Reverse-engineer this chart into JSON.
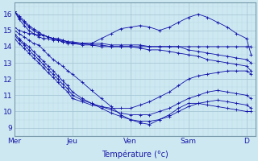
{
  "xlabel": "Température (°c)",
  "background_color": "#cde8f0",
  "grid_major_color": "#a8c8d8",
  "grid_minor_color": "#b8d8e8",
  "line_color": "#1010aa",
  "xlim": [
    0,
    4.15
  ],
  "ylim": [
    8.5,
    16.7
  ],
  "yticks": [
    9,
    10,
    11,
    12,
    13,
    14,
    15,
    16
  ],
  "x_day_labels": [
    "Mer",
    "Jeu",
    "Ven",
    "Sam",
    "D"
  ],
  "x_day_positions": [
    0,
    1,
    2,
    3,
    4
  ],
  "series": [
    {
      "x": [
        0.0,
        0.08,
        0.17,
        0.25,
        0.33,
        0.42,
        0.5,
        0.58,
        0.67,
        0.75,
        0.83,
        0.92,
        1.0,
        1.17,
        1.33,
        1.5,
        1.67,
        1.83,
        2.0,
        2.17,
        2.33,
        2.5,
        2.67,
        2.83,
        3.0,
        3.17,
        3.33,
        3.5,
        3.67,
        3.83,
        4.0,
        4.08
      ],
      "y": [
        16.2,
        15.8,
        15.5,
        15.2,
        15.0,
        14.8,
        14.7,
        14.6,
        14.5,
        14.4,
        14.3,
        14.2,
        14.2,
        14.1,
        14.1,
        14.0,
        14.0,
        14.0,
        14.0,
        14.0,
        14.0,
        14.0,
        14.0,
        14.0,
        14.0,
        14.0,
        14.0,
        14.0,
        14.0,
        14.0,
        14.0,
        14.0
      ]
    },
    {
      "x": [
        0.0,
        0.08,
        0.17,
        0.25,
        0.33,
        0.42,
        0.5,
        0.58,
        0.67,
        0.75,
        0.83,
        0.92,
        1.0,
        1.17,
        1.33,
        1.5,
        1.67,
        1.83,
        2.0,
        2.17,
        2.33,
        2.5,
        2.67,
        2.83,
        3.0,
        3.17,
        3.33,
        3.5,
        3.67,
        3.83,
        4.0,
        4.08
      ],
      "y": [
        16.2,
        15.7,
        15.3,
        15.0,
        14.8,
        14.6,
        14.5,
        14.5,
        14.4,
        14.4,
        14.3,
        14.3,
        14.2,
        14.2,
        14.2,
        14.2,
        14.1,
        14.1,
        14.1,
        14.1,
        14.0,
        14.0,
        14.0,
        14.0,
        13.8,
        13.7,
        13.6,
        13.5,
        13.4,
        13.3,
        13.2,
        13.0
      ]
    },
    {
      "x": [
        0.0,
        0.08,
        0.17,
        0.25,
        0.33,
        0.42,
        0.5,
        0.58,
        0.67,
        0.75,
        0.83,
        0.92,
        1.0,
        1.17,
        1.33,
        1.5,
        1.67,
        1.83,
        2.0,
        2.17,
        2.33,
        2.5,
        2.67,
        2.83,
        3.0,
        3.17,
        3.33,
        3.5,
        3.67,
        3.83,
        4.0,
        4.08
      ],
      "y": [
        15.2,
        15.0,
        14.9,
        14.8,
        14.8,
        14.7,
        14.7,
        14.6,
        14.5,
        14.5,
        14.4,
        14.3,
        14.3,
        14.2,
        14.1,
        14.1,
        14.0,
        14.0,
        14.0,
        13.9,
        13.8,
        13.8,
        13.7,
        13.6,
        13.5,
        13.4,
        13.2,
        13.1,
        13.0,
        12.9,
        12.8,
        12.5
      ]
    },
    {
      "x": [
        0.0,
        0.08,
        0.17,
        0.25,
        0.33,
        0.42,
        0.5,
        0.58,
        0.67,
        0.75,
        0.83,
        0.92,
        1.0,
        1.17,
        1.33,
        1.5,
        1.67,
        1.83,
        2.0,
        2.17,
        2.33,
        2.5,
        2.67,
        2.83,
        3.0,
        3.17,
        3.33,
        3.5,
        3.67,
        3.83,
        4.0,
        4.08
      ],
      "y": [
        15.0,
        14.8,
        14.6,
        14.4,
        14.2,
        14.1,
        13.8,
        13.5,
        13.2,
        13.0,
        12.8,
        12.5,
        12.3,
        11.8,
        11.3,
        10.8,
        10.3,
        9.8,
        9.5,
        9.3,
        9.2,
        9.5,
        9.8,
        10.2,
        10.5,
        10.5,
        10.4,
        10.3,
        10.2,
        10.1,
        10.0,
        10.0
      ]
    },
    {
      "x": [
        0.0,
        0.08,
        0.17,
        0.25,
        0.33,
        0.42,
        0.5,
        0.58,
        0.67,
        0.75,
        0.83,
        0.92,
        1.0,
        1.17,
        1.33,
        1.5,
        1.67,
        1.83,
        2.0,
        2.17,
        2.33,
        2.5,
        2.67,
        2.83,
        3.0,
        3.17,
        3.33,
        3.5,
        3.67,
        3.83,
        4.0,
        4.08
      ],
      "y": [
        14.8,
        14.5,
        14.2,
        14.0,
        13.7,
        13.4,
        13.1,
        12.8,
        12.5,
        12.2,
        11.9,
        11.6,
        11.2,
        10.8,
        10.5,
        10.2,
        9.9,
        9.7,
        9.5,
        9.4,
        9.4,
        9.5,
        9.7,
        10.0,
        10.3,
        10.5,
        10.6,
        10.7,
        10.6,
        10.5,
        10.4,
        10.2
      ]
    },
    {
      "x": [
        0.0,
        0.08,
        0.17,
        0.25,
        0.33,
        0.42,
        0.5,
        0.58,
        0.67,
        0.75,
        0.83,
        0.92,
        1.0,
        1.17,
        1.33,
        1.5,
        1.67,
        1.83,
        2.0,
        2.17,
        2.33,
        2.5,
        2.67,
        2.83,
        3.0,
        3.17,
        3.33,
        3.5,
        3.67,
        3.83,
        4.0,
        4.08
      ],
      "y": [
        14.7,
        14.4,
        14.1,
        13.8,
        13.5,
        13.2,
        12.9,
        12.6,
        12.3,
        12.0,
        11.7,
        11.4,
        11.0,
        10.7,
        10.5,
        10.3,
        10.1,
        9.9,
        9.8,
        9.8,
        9.8,
        10.0,
        10.2,
        10.5,
        10.8,
        11.0,
        11.2,
        11.3,
        11.2,
        11.1,
        11.0,
        10.8
      ]
    },
    {
      "x": [
        0.0,
        0.08,
        0.17,
        0.25,
        0.33,
        0.42,
        0.5,
        0.58,
        0.67,
        0.75,
        0.83,
        0.92,
        1.0,
        1.17,
        1.33,
        1.5,
        1.67,
        1.83,
        2.0,
        2.17,
        2.33,
        2.5,
        2.67,
        2.83,
        3.0,
        3.17,
        3.33,
        3.5,
        3.67,
        3.83,
        4.0,
        4.08
      ],
      "y": [
        14.5,
        14.2,
        13.9,
        13.6,
        13.3,
        13.0,
        12.7,
        12.4,
        12.1,
        11.8,
        11.5,
        11.2,
        10.8,
        10.6,
        10.4,
        10.3,
        10.2,
        10.2,
        10.2,
        10.4,
        10.6,
        10.9,
        11.2,
        11.6,
        12.0,
        12.2,
        12.3,
        12.4,
        12.5,
        12.5,
        12.5,
        12.3
      ]
    },
    {
      "x": [
        0.0,
        0.08,
        0.17,
        0.25,
        0.33,
        0.42,
        0.5,
        0.58,
        0.67,
        0.75,
        0.83,
        0.92,
        1.0,
        1.17,
        1.33,
        1.5,
        1.67,
        1.83,
        2.0,
        2.17,
        2.33,
        2.5,
        2.67,
        2.83,
        3.0,
        3.17,
        3.33,
        3.5,
        3.67,
        3.83,
        4.0,
        4.08
      ],
      "y": [
        16.2,
        15.9,
        15.6,
        15.3,
        15.1,
        14.9,
        14.7,
        14.6,
        14.5,
        14.4,
        14.4,
        14.3,
        14.2,
        14.2,
        14.2,
        14.5,
        14.8,
        15.1,
        15.2,
        15.3,
        15.2,
        15.0,
        15.2,
        15.5,
        15.8,
        16.0,
        15.8,
        15.5,
        15.2,
        14.8,
        14.5,
        13.5
      ]
    }
  ]
}
